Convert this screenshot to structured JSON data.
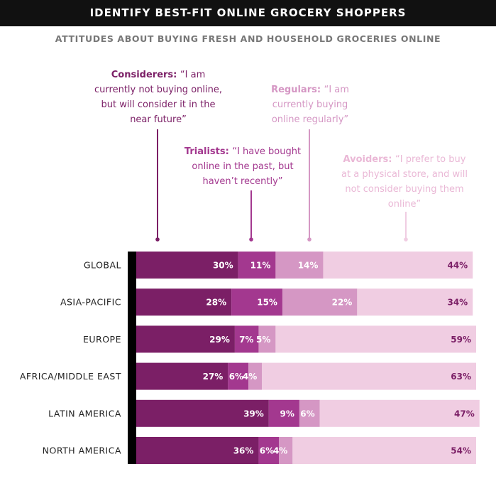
{
  "chart_data": {
    "type": "bar",
    "stacked": true,
    "orientation": "horizontal",
    "title": "IDENTIFY BEST-FIT ONLINE GROCERY SHOPPERS",
    "subtitle": "ATTITUDES ABOUT BUYING FRESH AND HOUSEHOLD GROCERIES ONLINE",
    "categories": [
      "GLOBAL",
      "ASIA-PACIFIC",
      "EUROPE",
      "AFRICA/MIDDLE EAST",
      "LATIN AMERICA",
      "NORTH AMERICA"
    ],
    "series": [
      {
        "name": "Considerers",
        "description": "“I am currently not buying online, but will consider it in the near future”",
        "color": "#7b1f66",
        "label_color": "#ffffff",
        "values": [
          30,
          28,
          29,
          27,
          39,
          36
        ]
      },
      {
        "name": "Trialists",
        "description": "“I have bought online in the past, but haven’t recently”",
        "color": "#a3388f",
        "label_color": "#ffffff",
        "values": [
          11,
          15,
          7,
          6,
          9,
          6
        ]
      },
      {
        "name": "Regulars",
        "description": "“I am currently buying online regularly”",
        "color": "#d597c4",
        "label_color": "#ffffff",
        "values": [
          14,
          22,
          5,
          4,
          6,
          4
        ]
      },
      {
        "name": "Avoiders",
        "description": "“I prefer to buy at a physical store, and will not consider buying them online”",
        "color": "#f0cde2",
        "label_color": "#7b1f66",
        "values": [
          44,
          34,
          59,
          63,
          47,
          54
        ]
      }
    ],
    "value_suffix": "%",
    "grid": false
  }
}
